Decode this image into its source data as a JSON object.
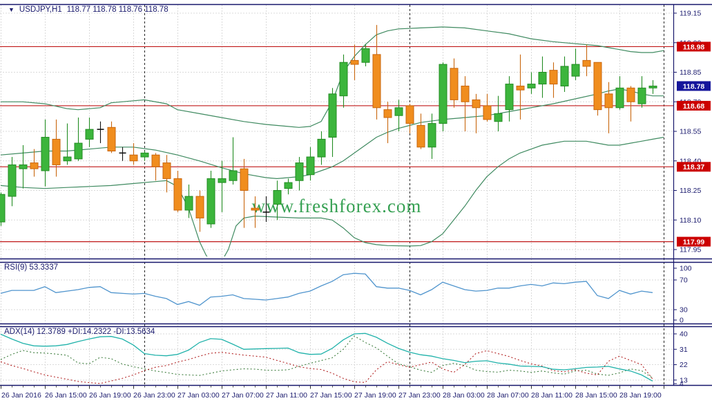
{
  "header": {
    "symbol_period": "USDJPY,H1",
    "quotes": "118.77 118.78 118.76 118.78"
  },
  "watermark": "www.freshforex.com",
  "colors": {
    "bull": "#3cb53c",
    "bull_edge": "#238c23",
    "bear": "#f08d1e",
    "bear_edge": "#c9660e",
    "doji": "#111111",
    "bands": "#3f8a60",
    "level": "#c01818",
    "rsi": "#4f94cd",
    "adx_main": "#20b2aa",
    "adx_plus": "#3e7d3e",
    "adx_minus": "#b22222",
    "axis_text": "#1b1b6e",
    "badge_red": "#cc0000",
    "badge_current": "#15159b",
    "watermark": "#35a052",
    "grid": "#d9d9d9",
    "separator": "#222222",
    "frame": "#16166b"
  },
  "price_axis": {
    "labels": [
      "119.15",
      "119.00",
      "118.85",
      "118.70",
      "118.55",
      "118.40",
      "118.25",
      "118.10",
      "117.95"
    ],
    "badges": [
      {
        "value": "118.98",
        "kind": "level"
      },
      {
        "value": "118.78",
        "kind": "current"
      },
      {
        "value": "118.68",
        "kind": "level"
      },
      {
        "value": "118.37",
        "kind": "level"
      },
      {
        "value": "117.99",
        "kind": "level"
      }
    ]
  },
  "time_axis": {
    "labels": [
      {
        "text": "26 Jan 2016",
        "i": 0
      },
      {
        "text": "26 Jan 15:00",
        "i": 4
      },
      {
        "text": "26 Jan 19:00",
        "i": 8
      },
      {
        "text": "26 Jan 23:00",
        "i": 12
      },
      {
        "text": "27 Jan 03:00",
        "i": 16
      },
      {
        "text": "27 Jan 07:00",
        "i": 20
      },
      {
        "text": "27 Jan 11:00",
        "i": 24
      },
      {
        "text": "27 Jan 15:00",
        "i": 28
      },
      {
        "text": "27 Jan 19:00",
        "i": 32
      },
      {
        "text": "27 Jan 23:00",
        "i": 36
      },
      {
        "text": "28 Jan 03:00",
        "i": 40
      },
      {
        "text": "28 Jan 07:00",
        "i": 44
      },
      {
        "text": "28 Jan 11:00",
        "i": 48
      },
      {
        "text": "28 Jan 15:00",
        "i": 52
      },
      {
        "text": "28 Jan 19:00",
        "i": 56
      }
    ],
    "day_separator_i": [
      13,
      37,
      60
    ]
  },
  "chart_data": {
    "type": "candlestick",
    "symbol": "USDJPY",
    "timeframe": "H1",
    "title": "USDJPY,H1  118.77 118.78 118.76 118.78",
    "ylim": [
      117.9,
      119.19
    ],
    "grid_prices": [
      119.15,
      119.0,
      118.85,
      118.7,
      118.55,
      118.4,
      118.25,
      118.1,
      117.95
    ],
    "levels": [
      118.98,
      118.68,
      118.37,
      117.99
    ],
    "current_price": 118.78,
    "candles_ohlc": [
      [
        118.09,
        118.24,
        118.07,
        118.23
      ],
      [
        118.22,
        118.42,
        118.17,
        118.38
      ],
      [
        118.36,
        118.48,
        118.26,
        118.38
      ],
      [
        118.39,
        118.46,
        118.32,
        118.36
      ],
      [
        118.35,
        118.61,
        118.27,
        118.52
      ],
      [
        118.51,
        118.61,
        118.32,
        118.38
      ],
      [
        118.4,
        118.59,
        118.38,
        118.42
      ],
      [
        118.41,
        118.62,
        118.4,
        118.49
      ],
      [
        118.51,
        118.62,
        118.47,
        118.56
      ],
      [
        118.56,
        118.6,
        118.49,
        118.56
      ],
      [
        118.57,
        118.6,
        118.44,
        118.45
      ],
      [
        118.44,
        118.47,
        118.4,
        118.44
      ],
      [
        118.43,
        118.49,
        118.38,
        118.4
      ],
      [
        118.42,
        118.45,
        118.4,
        118.44
      ],
      [
        118.43,
        118.44,
        118.3,
        118.37
      ],
      [
        118.39,
        118.43,
        118.24,
        118.31
      ],
      [
        118.31,
        118.35,
        118.14,
        118.15
      ],
      [
        118.15,
        118.28,
        118.11,
        118.22
      ],
      [
        118.22,
        118.25,
        118.04,
        118.11
      ],
      [
        118.08,
        118.35,
        118.06,
        118.31
      ],
      [
        118.29,
        118.4,
        118.14,
        118.31
      ],
      [
        118.3,
        118.52,
        118.28,
        118.35
      ],
      [
        118.36,
        118.41,
        118.06,
        118.25
      ],
      [
        118.16,
        118.22,
        118.06,
        118.15
      ],
      [
        118.14,
        118.22,
        118.09,
        118.14
      ],
      [
        118.18,
        118.3,
        118.1,
        118.25
      ],
      [
        118.26,
        118.31,
        118.23,
        118.29
      ],
      [
        118.3,
        118.42,
        118.25,
        118.39
      ],
      [
        118.33,
        118.47,
        118.3,
        118.42
      ],
      [
        118.42,
        118.55,
        118.38,
        118.51
      ],
      [
        118.52,
        118.77,
        118.42,
        118.74
      ],
      [
        118.73,
        118.94,
        118.67,
        118.9
      ],
      [
        118.91,
        118.99,
        118.81,
        118.89
      ],
      [
        118.9,
        118.99,
        118.88,
        118.97
      ],
      [
        118.94,
        119.09,
        118.61,
        118.67
      ],
      [
        118.66,
        118.7,
        118.49,
        118.62
      ],
      [
        118.63,
        118.71,
        118.55,
        118.67
      ],
      [
        118.68,
        118.69,
        118.54,
        118.59
      ],
      [
        118.58,
        118.64,
        118.46,
        118.47
      ],
      [
        118.47,
        118.64,
        118.41,
        118.59
      ],
      [
        118.59,
        118.9,
        118.55,
        118.89
      ],
      [
        118.87,
        118.92,
        118.67,
        118.71
      ],
      [
        118.78,
        118.83,
        118.55,
        118.7
      ],
      [
        118.71,
        118.74,
        118.54,
        118.67
      ],
      [
        118.68,
        118.74,
        118.6,
        118.61
      ],
      [
        118.6,
        118.73,
        118.55,
        118.64
      ],
      [
        118.66,
        118.83,
        118.6,
        118.79
      ],
      [
        118.78,
        118.94,
        118.61,
        118.76
      ],
      [
        118.77,
        118.85,
        118.74,
        118.79
      ],
      [
        118.79,
        118.93,
        118.72,
        118.85
      ],
      [
        118.86,
        118.9,
        118.72,
        118.79
      ],
      [
        118.78,
        118.93,
        118.75,
        118.88
      ],
      [
        118.83,
        118.97,
        118.81,
        118.89
      ],
      [
        118.91,
        118.99,
        118.83,
        118.88
      ],
      [
        118.9,
        118.9,
        118.63,
        118.66
      ],
      [
        118.74,
        118.8,
        118.54,
        118.67
      ],
      [
        118.67,
        118.83,
        118.66,
        118.77
      ],
      [
        118.77,
        118.78,
        118.6,
        118.7
      ],
      [
        118.69,
        118.83,
        118.67,
        118.77
      ],
      [
        118.77,
        118.81,
        118.74,
        118.78
      ]
    ],
    "bollinger": {
      "period": 20,
      "upper": [
        [
          0,
          118.7
        ],
        [
          2,
          118.7
        ],
        [
          4,
          118.69
        ],
        [
          6,
          118.665
        ],
        [
          7,
          118.66
        ],
        [
          9,
          118.67
        ],
        [
          10,
          118.695
        ],
        [
          12,
          118.705
        ],
        [
          13,
          118.71
        ],
        [
          15,
          118.69
        ],
        [
          16,
          118.66
        ],
        [
          18,
          118.64
        ],
        [
          20,
          118.62
        ],
        [
          22,
          118.6
        ],
        [
          24,
          118.585
        ],
        [
          26,
          118.575
        ],
        [
          27,
          118.57
        ],
        [
          28,
          118.575
        ],
        [
          29,
          118.6
        ],
        [
          30,
          118.7
        ],
        [
          31,
          118.85
        ],
        [
          32,
          118.93
        ],
        [
          33,
          118.99
        ],
        [
          34,
          119.04
        ],
        [
          35,
          119.06
        ],
        [
          36,
          119.07
        ],
        [
          38,
          119.075
        ],
        [
          40,
          119.08
        ],
        [
          42,
          119.075
        ],
        [
          44,
          119.06
        ],
        [
          46,
          119.045
        ],
        [
          48,
          119.02
        ],
        [
          50,
          119.005
        ],
        [
          52,
          118.995
        ],
        [
          54,
          118.985
        ],
        [
          55,
          118.975
        ],
        [
          56,
          118.965
        ],
        [
          57,
          118.955
        ],
        [
          58,
          118.95
        ],
        [
          59,
          118.95
        ],
        [
          60,
          118.96
        ]
      ],
      "middle": [
        [
          0,
          118.43
        ],
        [
          2,
          118.44
        ],
        [
          4,
          118.45
        ],
        [
          6,
          118.45
        ],
        [
          8,
          118.46
        ],
        [
          10,
          118.47
        ],
        [
          12,
          118.47
        ],
        [
          14,
          118.455
        ],
        [
          16,
          118.43
        ],
        [
          18,
          118.4
        ],
        [
          20,
          118.365
        ],
        [
          22,
          118.335
        ],
        [
          24,
          118.315
        ],
        [
          25,
          118.31
        ],
        [
          26,
          118.315
        ],
        [
          27,
          118.32
        ],
        [
          28,
          118.33
        ],
        [
          29,
          118.35
        ],
        [
          30,
          118.37
        ],
        [
          31,
          118.4
        ],
        [
          32,
          118.44
        ],
        [
          33,
          118.48
        ],
        [
          34,
          118.52
        ],
        [
          35,
          118.545
        ],
        [
          36,
          118.565
        ],
        [
          37,
          118.58
        ],
        [
          38,
          118.595
        ],
        [
          40,
          118.61
        ],
        [
          42,
          118.62
        ],
        [
          44,
          118.63
        ],
        [
          46,
          118.65
        ],
        [
          48,
          118.67
        ],
        [
          50,
          118.69
        ],
        [
          52,
          118.715
        ],
        [
          54,
          118.74
        ],
        [
          55,
          118.755
        ],
        [
          56,
          118.765
        ],
        [
          57,
          118.755
        ],
        [
          58,
          118.74
        ],
        [
          59,
          118.73
        ],
        [
          60,
          118.73
        ]
      ],
      "lower": [
        [
          0,
          118.275
        ],
        [
          2,
          118.265
        ],
        [
          4,
          118.26
        ],
        [
          6,
          118.265
        ],
        [
          8,
          118.27
        ],
        [
          10,
          118.275
        ],
        [
          12,
          118.285
        ],
        [
          14,
          118.295
        ],
        [
          15,
          118.3
        ],
        [
          16,
          118.27
        ],
        [
          17,
          118.16
        ],
        [
          18,
          117.99
        ],
        [
          18.6,
          117.92
        ],
        [
          19.2,
          117.88
        ],
        [
          20,
          117.89
        ],
        [
          20.6,
          117.95
        ],
        [
          21.3,
          118.07
        ],
        [
          22,
          118.11
        ],
        [
          23,
          118.12
        ],
        [
          25,
          118.115
        ],
        [
          27,
          118.11
        ],
        [
          29,
          118.11
        ],
        [
          30,
          118.1
        ],
        [
          31,
          118.06
        ],
        [
          32,
          118.01
        ],
        [
          33,
          117.985
        ],
        [
          34,
          117.975
        ],
        [
          35,
          117.97
        ],
        [
          37,
          117.968
        ],
        [
          38,
          117.97
        ],
        [
          39,
          117.99
        ],
        [
          40,
          118.03
        ],
        [
          41,
          118.1
        ],
        [
          42,
          118.17
        ],
        [
          43,
          118.25
        ],
        [
          44,
          118.32
        ],
        [
          45,
          118.37
        ],
        [
          46,
          118.41
        ],
        [
          47,
          118.44
        ],
        [
          48,
          118.46
        ],
        [
          49,
          118.48
        ],
        [
          50,
          118.49
        ],
        [
          51,
          118.5
        ],
        [
          52,
          118.5
        ],
        [
          53,
          118.5
        ],
        [
          54,
          118.49
        ],
        [
          55,
          118.48
        ],
        [
          56,
          118.48
        ],
        [
          57,
          118.49
        ],
        [
          58,
          118.5
        ],
        [
          59,
          118.51
        ],
        [
          60,
          118.52
        ]
      ]
    },
    "rsi": {
      "label": "RSI(9) 53.3337",
      "period": 9,
      "last": 53.3337,
      "scale_labels": [
        "100",
        "70",
        "30",
        "0"
      ],
      "grid_values": [
        70,
        30
      ],
      "values": [
        52,
        56,
        56,
        56,
        61,
        53,
        55,
        57,
        60,
        61,
        53,
        52,
        51,
        52,
        48,
        45,
        37,
        41,
        36,
        47,
        48,
        50,
        45,
        44,
        43,
        45,
        47,
        52,
        55,
        62,
        68,
        77,
        79,
        78,
        61,
        59,
        59,
        56,
        50,
        57,
        67,
        62,
        57,
        55,
        56,
        59,
        59,
        62,
        64,
        62,
        66,
        65,
        67,
        68,
        49,
        45,
        56,
        51,
        55,
        53
      ]
    },
    "adx": {
      "label": "ADX(14) 12.3789 +DI:14.2322 -DI:13.5634",
      "period": 14,
      "last_adx": 12.3789,
      "last_plus_di": 14.2322,
      "last_minus_di": 13.5634,
      "scale_labels": [
        "40",
        "31",
        "22",
        "13",
        "4"
      ],
      "grid_values": [
        40,
        31,
        22,
        13
      ],
      "main": [
        39.8,
        37,
        34.5,
        33,
        32.8,
        33,
        33.8,
        35.5,
        37,
        38.3,
        38.5,
        37,
        33.5,
        28.5,
        27.5,
        27.2,
        28,
        30.5,
        35,
        37.2,
        36.8,
        34,
        31,
        31.2,
        31.4,
        31.5,
        31.7,
        29,
        28,
        28.2,
        31.5,
        36.5,
        40,
        40.3,
        38,
        34.5,
        31.5,
        29.3,
        27.8,
        27,
        25.5,
        24.5,
        23.2,
        24,
        24.3,
        23,
        22.3,
        21.2,
        21,
        20.8,
        19.3,
        19,
        19.6,
        20.4,
        20.6,
        21,
        19.5,
        18.3,
        16,
        12.4
      ],
      "plus_di": [
        25,
        28,
        30.3,
        29,
        28.8,
        28.2,
        27.5,
        23,
        22.5,
        26.3,
        25.5,
        22.4,
        20.8,
        19.6,
        18.3,
        17.4,
        16.3,
        16,
        15.7,
        17,
        18.3,
        19,
        19.6,
        19.4,
        18.8,
        18.7,
        19,
        21,
        22.8,
        24.4,
        26,
        31,
        38.8,
        35,
        31.8,
        27,
        22.5,
        20.8,
        18.8,
        17.5,
        21.5,
        22.8,
        21.5,
        18.8,
        18,
        17.6,
        18.8,
        18.3,
        17.5,
        18.3,
        17.2,
        16.5,
        18.3,
        18.8,
        16.5,
        15.8,
        17.2,
        19.5,
        18.5,
        14.2
      ],
      "minus_di": [
        23.7,
        21.5,
        19.8,
        17.8,
        16,
        14.7,
        13.5,
        12.2,
        11.5,
        11,
        12.5,
        14,
        16,
        18.5,
        20.5,
        21.5,
        23.5,
        25,
        27,
        28.7,
        29.2,
        28.4,
        27.6,
        27,
        26.4,
        24.5,
        22.7,
        20.8,
        19.7,
        19.2,
        17,
        14,
        12,
        11.6,
        19,
        23.7,
        22,
        20.5,
        22,
        23.5,
        19.5,
        17.5,
        22,
        28.5,
        30.2,
        28.5,
        26.8,
        24.5,
        22.5,
        21.2,
        18.5,
        17.8,
        19,
        17,
        16,
        24,
        27,
        24.5,
        22,
        13.6
      ]
    }
  }
}
